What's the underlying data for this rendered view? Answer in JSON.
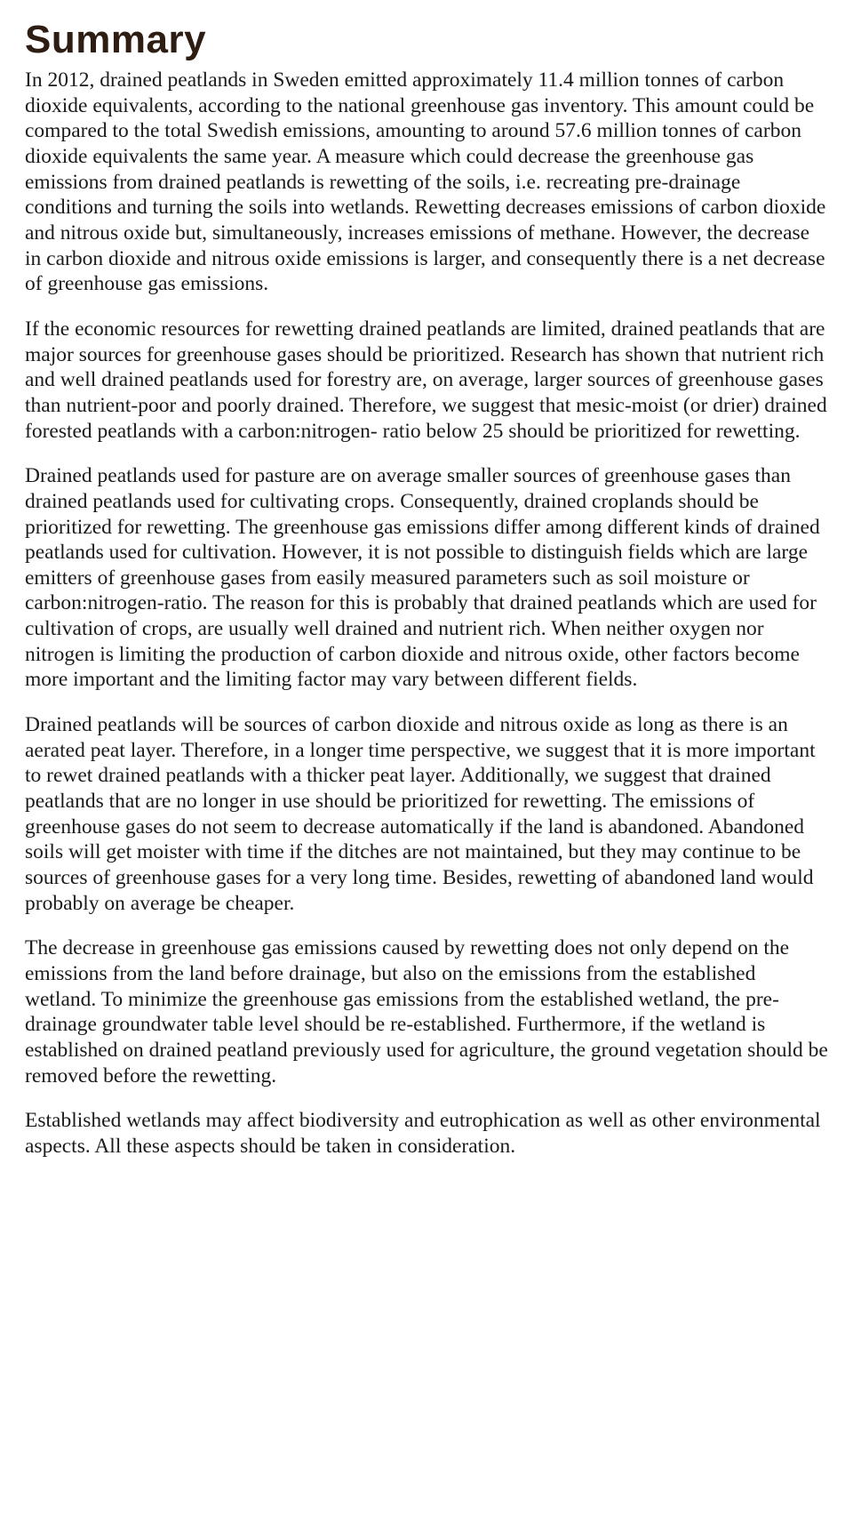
{
  "document": {
    "title": "Summary",
    "title_color": "#2d1d13",
    "title_fontsize": 44,
    "title_font": "Arial",
    "body_fontsize": 23.5,
    "body_font": "Times New Roman",
    "body_color": "#1a1a1a",
    "background_color": "#ffffff",
    "paragraphs": [
      "In 2012, drained peatlands in Sweden emitted approximately 11.4 million tonnes of carbon dioxide equivalents, according to the national greenhouse gas inventory. This amount could be compared to the total Swedish emissions, amounting to around 57.6 million tonnes of carbon dioxide equivalents the same year. A measure which could decrease the greenhouse gas emissions from drained peatlands is rewetting of the soils, i.e. recreating pre-drainage conditions and turning the soils into wetlands. Rewetting decreases emissions of carbon dioxide and nitrous oxide but, simultaneously, increases emissions of methane. However, the decrease in carbon dioxide and nitrous oxide emissions is larger, and consequently there is a net decrease of greenhouse gas emissions.",
      "If the economic resources for rewetting drained peatlands are limited, drained peatlands that are major sources for greenhouse gases should be prioritized. Research has shown that nutrient rich and well drained peatlands used for forestry are, on average, larger sources of greenhouse gases than nutrient-poor and poorly drained. Therefore, we suggest that mesic-moist (or drier) drained forested peatlands with a carbon:nitrogen- ratio below 25 should be prioritized for rewetting.",
      "Drained peatlands used for pasture are on average smaller sources of greenhouse gases than drained peatlands used for cultivating crops. Consequently, drained croplands should be prioritized for rewetting. The greenhouse gas emissions differ among different kinds of drained peatlands used for cultivation. However, it is not possible to distinguish fields which are large emitters of greenhouse gases from easily measured parameters such as soil moisture or carbon:nitrogen-ratio. The reason for this is probably that drained peatlands which are used for cultivation of crops, are usually well drained and nutrient rich. When neither oxygen nor nitrogen is limiting the production of carbon dioxide and nitrous oxide, other factors become more important and the limiting factor may vary between different fields.",
      "Drained peatlands will be sources of carbon dioxide and nitrous oxide as long as there is an aerated peat layer. Therefore, in a longer time perspective, we suggest that it is more important to rewet drained peatlands with a thicker peat layer. Additionally, we suggest that drained peatlands that are no longer in use should be prioritized for rewetting. The emissions of greenhouse gases do not seem to decrease automatically if the land is abandoned. Abandoned soils will get moister with time if the ditches are not maintained, but they may continue to be sources of greenhouse gases for a very long time. Besides, rewetting of abandoned land would probably on average be cheaper.",
      "The decrease in greenhouse gas emissions caused by rewetting does not only depend on the emissions from the land before drainage, but also on the emissions from the established wetland. To minimize the greenhouse gas emissions from the established wetland, the pre-drainage groundwater table level should be re-established. Furthermore, if the wetland is established on drained peatland previously used for agriculture, the ground vegetation should be removed before the rewetting.",
      "Established wetlands may affect biodiversity and eutrophication as well as other environmental aspects. All these aspects should be taken in consideration."
    ]
  }
}
